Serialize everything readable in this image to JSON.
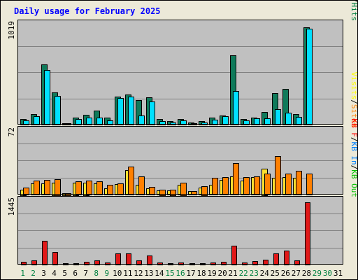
{
  "chart_data": {
    "type": "bar",
    "title": "Daily usage for February 2025",
    "colors": {
      "background": "#ECE9D8",
      "plot_bg": "#C0C0C0",
      "grid": "#808080",
      "title": "#0000FF",
      "pages": "#00E0FF",
      "files": "#0040FF",
      "hits": "#008040",
      "hits_bar": "#0F7A5A",
      "visits": "#FFFF00",
      "visits_bar": "#FFE030",
      "sites": "#FF8000",
      "kbin": "#0080FF",
      "kbout": "#00C000",
      "kbf": "#FF0000",
      "kbf_bar": "#E01818",
      "weekend_label": "#008040",
      "weekday_label": "#000000"
    },
    "days": [
      "1",
      "2",
      "3",
      "4",
      "5",
      "6",
      "7",
      "8",
      "9",
      "10",
      "11",
      "12",
      "13",
      "14",
      "15",
      "16",
      "17",
      "18",
      "19",
      "20",
      "21",
      "22",
      "23",
      "24",
      "25",
      "26",
      "27",
      "28",
      "29",
      "30",
      "31"
    ],
    "weekend_days": [
      "1",
      "2",
      "8",
      "9",
      "15",
      "16",
      "22",
      "23",
      "29",
      "30"
    ],
    "panels": [
      {
        "id": "hits-files-pages",
        "ymax_label": "1019",
        "ymax": 1019,
        "legend": [
          {
            "text": "Pages",
            "color": "#00E0FF"
          },
          {
            "text": "/",
            "color": "#000000"
          },
          {
            "text": "Files",
            "color": "#0040FF"
          },
          {
            "text": "/",
            "color": "#000000"
          },
          {
            "text": "Hits",
            "color": "#008040"
          }
        ],
        "series": [
          {
            "name": "Hits",
            "color": "#0F7A5A",
            "values": [
              60,
              105,
              620,
              330,
              8,
              70,
              100,
              140,
              70,
              290,
              310,
              250,
              280,
              60,
              35,
              55,
              20,
              35,
              70,
              90,
              710,
              55,
              75,
              130,
              320,
              365,
              105,
              1000,
              0,
              0,
              0
            ]
          },
          {
            "name": "Pages",
            "color": "#00E0FF",
            "values": [
              40,
              85,
              560,
              295,
              6,
              60,
              75,
              75,
              40,
              270,
              290,
              95,
              240,
              35,
              25,
              40,
              12,
              25,
              50,
              85,
              345,
              40,
              65,
              65,
              155,
              125,
              80,
              985,
              0,
              0,
              0
            ]
          }
        ]
      },
      {
        "id": "visits-sites",
        "ymax_label": "72",
        "ymax": 72,
        "legend": [
          {
            "text": "Visits",
            "color": "#FFFF00"
          },
          {
            "text": "/",
            "color": "#000000"
          },
          {
            "text": "Sites",
            "color": "#FF8000"
          }
        ],
        "series": [
          {
            "name": "Visits",
            "color": "#FFE030",
            "values": [
              6,
              13,
              13,
              14,
              2,
              14,
              14,
              13,
              7,
              12,
              28,
              11,
              7,
              5,
              5,
              11,
              4,
              8,
              11,
              17,
              21,
              16,
              20,
              30,
              19,
              20,
              19,
              0,
              0,
              0,
              0
            ]
          },
          {
            "name": "Sites",
            "color": "#FF8000",
            "values": [
              8,
              16,
              17,
              18,
              2,
              15,
              16,
              15,
              11,
              13,
              32,
              21,
              9,
              6,
              6,
              14,
              4,
              10,
              19,
              20,
              36,
              20,
              21,
              24,
              44,
              24,
              27,
              24,
              0,
              0,
              0
            ]
          }
        ]
      },
      {
        "id": "kbf",
        "ymax_label": "1445",
        "ymax": 1445,
        "legend": [
          {
            "text": "KB F",
            "color": "#FF0000"
          },
          {
            "text": "/",
            "color": "#000000"
          },
          {
            "text": "KB In",
            "color": "#0080FF"
          },
          {
            "text": "/",
            "color": "#000000"
          },
          {
            "text": "KB Out",
            "color": "#00C000"
          }
        ],
        "series": [
          {
            "name": "KB F",
            "color": "#E01818",
            "values": [
              60,
              90,
              545,
              290,
              10,
              30,
              60,
              100,
              50,
              250,
              260,
              90,
              215,
              50,
              10,
              50,
              15,
              30,
              50,
              70,
              440,
              50,
              80,
              110,
              250,
              320,
              90,
              1430,
              0,
              0,
              0
            ]
          }
        ]
      }
    ]
  }
}
